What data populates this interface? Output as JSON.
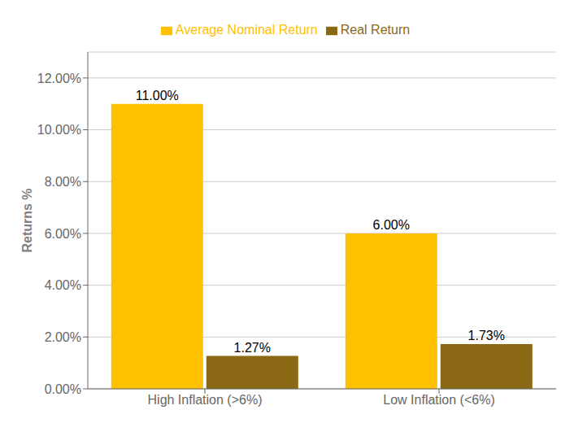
{
  "chart_data": {
    "type": "bar",
    "categories": [
      "High Inflation (>6%)",
      "Low Inflation (<6%)"
    ],
    "series": [
      {
        "name": "Average Nominal Return",
        "color": "#FFC000",
        "values": [
          0.11,
          0.06
        ],
        "value_labels": [
          "11.00%",
          "6.00%"
        ]
      },
      {
        "name": "Real Return",
        "color": "#8B6914",
        "values": [
          0.0127,
          0.0173
        ],
        "value_labels": [
          "1.27%",
          "1.73%"
        ]
      }
    ],
    "ylabel": "Returns %",
    "ylim": [
      0,
      0.13
    ],
    "yticks": [
      {
        "value": 0.0,
        "label": "0.00%"
      },
      {
        "value": 0.02,
        "label": "2.00%"
      },
      {
        "value": 0.04,
        "label": "4.00%"
      },
      {
        "value": 0.06,
        "label": "6.00%"
      },
      {
        "value": 0.08,
        "label": "8.00%"
      },
      {
        "value": 0.1,
        "label": "10.00%"
      },
      {
        "value": 0.12,
        "label": "12.00%"
      }
    ],
    "grid": true,
    "legend": "top",
    "data_labels": true
  }
}
